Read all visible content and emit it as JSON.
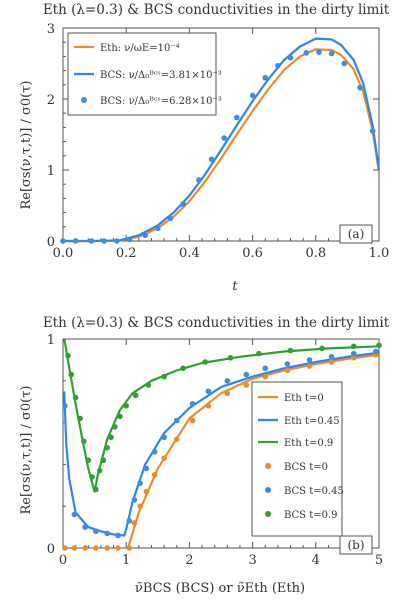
{
  "colors": {
    "eth": "#ef8a2a",
    "bcs_line": "#2d86e8",
    "bcs_pts": "#3a8ee6",
    "green": "#2ea12e",
    "axis": "#555555"
  },
  "chart_data": [
    {
      "type": "line",
      "title": "Eth (λ=0.3) & BCS conductivities in the dirty limit",
      "xlabel": "t",
      "ylabel": "Re[σs(ν,τ,t)] / σ0(τ)",
      "xlim": [
        0,
        1
      ],
      "ylim": [
        0,
        3
      ],
      "xticks": [
        "0.0",
        "0.2",
        "0.4",
        "0.6",
        "0.8",
        "1.0"
      ],
      "yticks": [
        "0",
        "1",
        "2",
        "3"
      ],
      "grid": false,
      "legend_position": "top-left",
      "panel_label": "(a)",
      "x": [
        0.0,
        0.1,
        0.18,
        0.24,
        0.3,
        0.35,
        0.4,
        0.45,
        0.5,
        0.55,
        0.6,
        0.65,
        0.7,
        0.75,
        0.8,
        0.85,
        0.88,
        0.92,
        0.95,
        0.98,
        1.0
      ],
      "series": [
        {
          "name": "Eth: ν/ωE=10⁻⁴",
          "kind": "line",
          "color": "#ef8a2a",
          "values": [
            0.0,
            0.0,
            0.005,
            0.06,
            0.18,
            0.34,
            0.56,
            0.84,
            1.16,
            1.5,
            1.83,
            2.14,
            2.41,
            2.6,
            2.7,
            2.69,
            2.62,
            2.42,
            2.1,
            1.55,
            0.97
          ]
        },
        {
          "name": "BCS: ν/Δ₀ᴮᶜˢ=3.81×10⁻³",
          "kind": "line",
          "color": "#2d86e8",
          "values": [
            0.0,
            0.0,
            0.01,
            0.08,
            0.22,
            0.4,
            0.64,
            0.94,
            1.28,
            1.63,
            1.97,
            2.28,
            2.55,
            2.74,
            2.85,
            2.84,
            2.76,
            2.55,
            2.22,
            1.62,
            1.0
          ]
        },
        {
          "name": "BCS: ν/Δ₀ᴮᶜˢ=6.28×10⁻³",
          "kind": "points",
          "color": "#3a8ee6",
          "x": [
            0.0,
            0.04,
            0.09,
            0.13,
            0.17,
            0.21,
            0.26,
            0.3,
            0.34,
            0.38,
            0.43,
            0.47,
            0.51,
            0.55,
            0.6,
            0.64,
            0.68,
            0.72,
            0.77,
            0.81,
            0.85,
            0.89,
            0.94,
            0.98
          ],
          "values": [
            0.0,
            0.0,
            0.0,
            0.0,
            0.0,
            0.02,
            0.08,
            0.18,
            0.32,
            0.52,
            0.86,
            1.15,
            1.45,
            1.74,
            2.05,
            2.3,
            2.47,
            2.58,
            2.65,
            2.66,
            2.64,
            2.5,
            2.16,
            1.55
          ]
        }
      ]
    },
    {
      "type": "line",
      "title": "Eth (λ=0.3) & BCS conductivities in the dirty limit",
      "xlabel": "ν̃BCS (BCS) or ν̃Eth (Eth)",
      "ylabel": "Re[σs(ν,τ,t)] / σ0(τ)",
      "xlim": [
        0,
        5
      ],
      "ylim": [
        0,
        1
      ],
      "xticks": [
        "0",
        "1",
        "2",
        "3",
        "4",
        "5"
      ],
      "yticks": [
        "0",
        "1"
      ],
      "grid": false,
      "legend_position": "right",
      "panel_label": "(b)",
      "series": [
        {
          "name": "Eth t=0",
          "kind": "line",
          "color": "#ef8a2a",
          "x": [
            1.03,
            1.2,
            1.5,
            2.0,
            2.5,
            3.0,
            3.5,
            4.0,
            4.5,
            5.0
          ],
          "values": [
            0.0,
            0.17,
            0.38,
            0.62,
            0.74,
            0.81,
            0.85,
            0.88,
            0.905,
            0.925
          ]
        },
        {
          "name": "Eth t=0.45",
          "kind": "line",
          "color": "#2d86e8",
          "x": [
            0.02,
            0.05,
            0.1,
            0.2,
            0.4,
            0.6,
            0.8,
            0.97,
            1.0,
            1.1,
            1.3,
            1.6,
            2.0,
            2.5,
            3.0,
            3.5,
            4.0,
            4.5,
            5.0
          ],
          "values": [
            0.75,
            0.5,
            0.33,
            0.17,
            0.1,
            0.08,
            0.065,
            0.06,
            0.09,
            0.22,
            0.4,
            0.55,
            0.67,
            0.77,
            0.82,
            0.86,
            0.89,
            0.915,
            0.935
          ]
        },
        {
          "name": "Eth t=0.9",
          "kind": "line",
          "color": "#2ea12e",
          "x": [
            0.02,
            0.1,
            0.2,
            0.3,
            0.4,
            0.5,
            0.55,
            0.7,
            0.9,
            1.1,
            1.4,
            1.8,
            2.2,
            2.8,
            3.5,
            4.2,
            5.0
          ],
          "values": [
            1.0,
            0.86,
            0.69,
            0.53,
            0.38,
            0.27,
            0.35,
            0.52,
            0.66,
            0.74,
            0.8,
            0.85,
            0.885,
            0.915,
            0.94,
            0.955,
            0.965
          ]
        },
        {
          "name": "BCS t=0",
          "kind": "points",
          "color": "#ef8a2a",
          "x": [
            0.03,
            0.18,
            0.35,
            0.52,
            0.7,
            0.87,
            1.05,
            1.13,
            1.22,
            1.32,
            1.45,
            1.6,
            1.8,
            2.05,
            2.3,
            2.6,
            2.9,
            3.2,
            3.55,
            3.9,
            4.25,
            4.6,
            4.95
          ],
          "values": [
            0.0,
            0.0,
            0.0,
            0.0,
            0.0,
            0.0,
            0.0,
            0.12,
            0.2,
            0.27,
            0.35,
            0.43,
            0.52,
            0.61,
            0.68,
            0.74,
            0.78,
            0.82,
            0.85,
            0.87,
            0.89,
            0.91,
            0.925
          ]
        },
        {
          "name": "BCS t=0.45",
          "kind": "points",
          "color": "#3a8ee6",
          "x": [
            0.03,
            0.18,
            0.35,
            0.52,
            0.7,
            0.87,
            1.05,
            1.13,
            1.22,
            1.32,
            1.45,
            1.6,
            1.8,
            2.05,
            2.3,
            2.6,
            2.9,
            3.2,
            3.55,
            3.9,
            4.25,
            4.6,
            4.95
          ],
          "values": [
            0.68,
            0.16,
            0.1,
            0.08,
            0.07,
            0.06,
            0.13,
            0.23,
            0.31,
            0.38,
            0.46,
            0.53,
            0.61,
            0.69,
            0.75,
            0.8,
            0.83,
            0.86,
            0.88,
            0.9,
            0.915,
            0.93,
            0.94
          ]
        },
        {
          "name": "BCS t=0.9",
          "kind": "points",
          "color": "#2ea12e",
          "x": [
            0.08,
            0.13,
            0.2,
            0.27,
            0.33,
            0.4,
            0.46,
            0.52,
            0.58,
            0.64,
            0.7,
            0.76,
            0.82,
            0.9,
            1.0,
            1.15,
            1.35,
            1.6,
            1.9,
            2.25,
            2.65,
            3.1,
            3.6,
            4.1,
            4.6,
            5.0
          ],
          "values": [
            0.92,
            0.83,
            0.72,
            0.62,
            0.51,
            0.42,
            0.34,
            0.28,
            0.37,
            0.42,
            0.48,
            0.53,
            0.58,
            0.63,
            0.68,
            0.73,
            0.78,
            0.82,
            0.86,
            0.89,
            0.91,
            0.93,
            0.945,
            0.955,
            0.965,
            0.97
          ]
        }
      ]
    }
  ]
}
